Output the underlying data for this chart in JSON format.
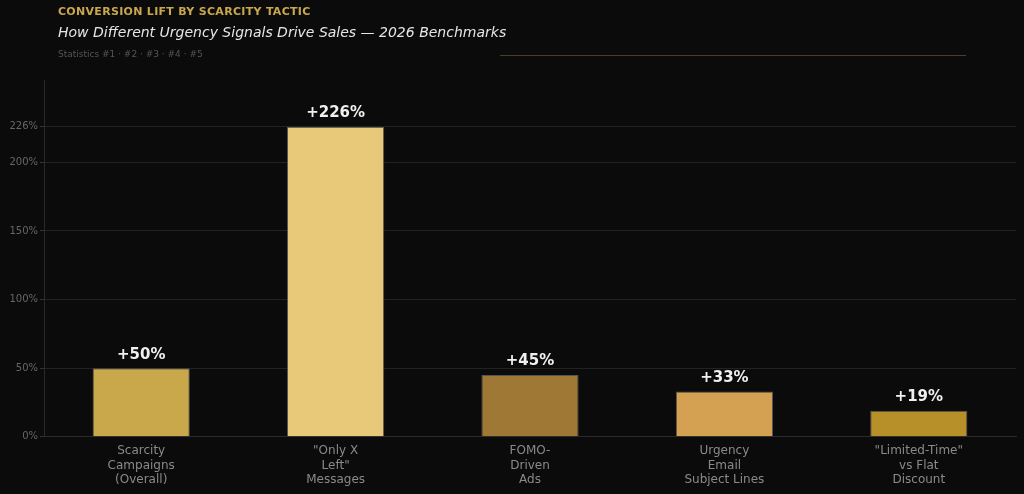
{
  "chart_data": {
    "type": "bar",
    "title": "CONVERSION LIFT BY SCARCITY TACTIC",
    "subtitle": "How Different Urgency Signals Drive Sales — 2026 Benchmarks",
    "annotations": [
      "Statistics #1 · #2 · #3 · #4 · #5"
    ],
    "categories": [
      "Scarcity\nCampaigns\n(Overall)",
      "\"Only X\nLeft\"\nMessages",
      "FOMO-\nDriven\nAds",
      "Urgency\nEmail\nSubject Lines",
      "\"Limited-Time\"\nvs Flat\nDiscount"
    ],
    "values": [
      50,
      226,
      45,
      33,
      19
    ],
    "colors": [
      "#c9a84c",
      "#e8c97a",
      "#a07836",
      "#d4a052",
      "#b8902a"
    ],
    "value_labels": [
      "+50%",
      "+226%",
      "+45%",
      "+33%",
      "+19%"
    ],
    "ylim": [
      0,
      260
    ],
    "yticks": [
      {
        "value": 0,
        "label": "0%"
      },
      {
        "value": 50,
        "label": "50%"
      },
      {
        "value": 100,
        "label": "100%"
      },
      {
        "value": 150,
        "label": "150%"
      },
      {
        "value": 200,
        "label": "200%"
      },
      {
        "value": 226,
        "label": "226%"
      }
    ],
    "grid": "y",
    "legend": false
  }
}
